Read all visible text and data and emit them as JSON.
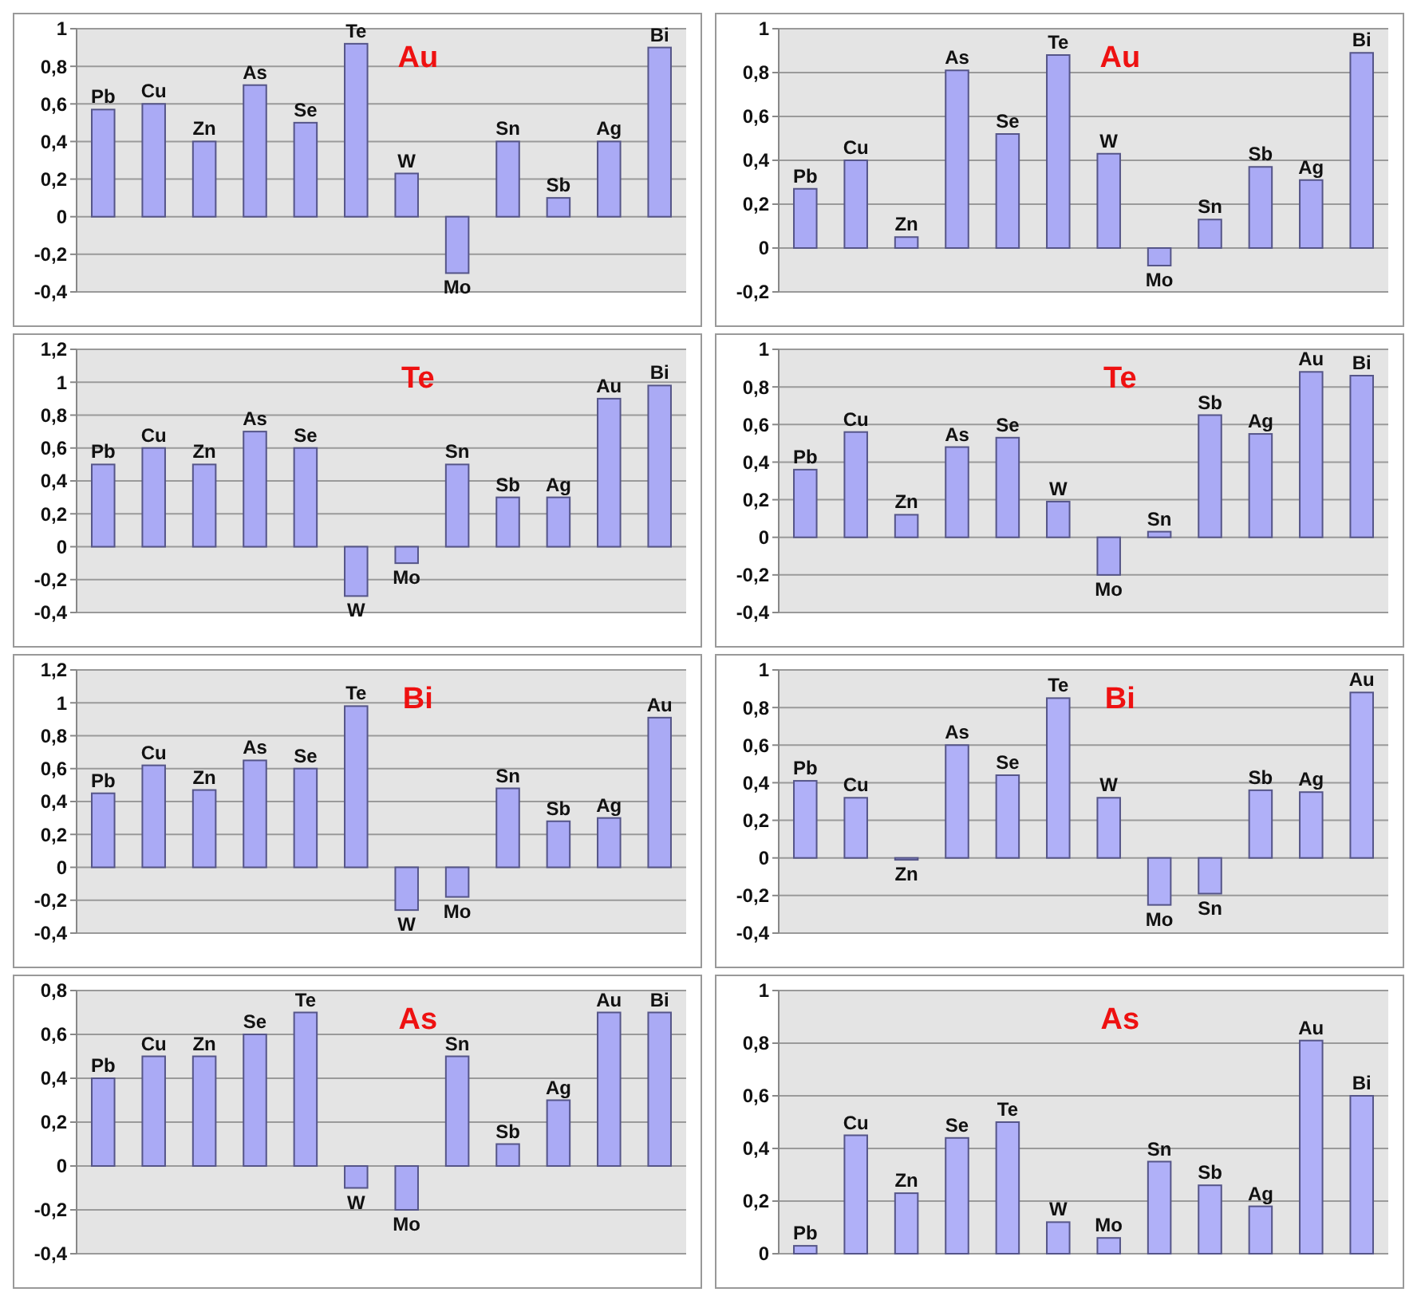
{
  "chart_data": [
    {
      "type": "bar",
      "title": "Au",
      "categories": [
        "Pb",
        "Cu",
        "Zn",
        "As",
        "Se",
        "Te",
        "W",
        "Mo",
        "Sn",
        "Sb",
        "Ag",
        "Bi"
      ],
      "values": [
        0.57,
        0.6,
        0.4,
        0.7,
        0.5,
        0.92,
        0.23,
        -0.3,
        0.4,
        0.1,
        0.4,
        0.9
      ],
      "color": "#aaaaf5",
      "ylim": [
        -0.4,
        1
      ],
      "yticks": [
        {
          "value": -0.4,
          "label": "-0,4"
        },
        {
          "value": -0.2,
          "label": "-0,2"
        },
        {
          "value": 0,
          "label": "0"
        },
        {
          "value": 0.2,
          "label": "0,2"
        },
        {
          "value": 0.4,
          "label": "0,4"
        },
        {
          "value": 0.6,
          "label": "0,6"
        },
        {
          "value": 0.8,
          "label": "0,8"
        },
        {
          "value": 1,
          "label": "1"
        }
      ],
      "grid": "y"
    },
    {
      "type": "bar",
      "title": "Au",
      "categories": [
        "Pb",
        "Cu",
        "Zn",
        "As",
        "Se",
        "Te",
        "W",
        "Mo",
        "Sn",
        "Sb",
        "Ag",
        "Bi"
      ],
      "values": [
        0.27,
        0.4,
        0.05,
        0.81,
        0.52,
        0.88,
        0.43,
        -0.08,
        0.13,
        0.37,
        0.31,
        0.89
      ],
      "color": "#aaaaf5",
      "ylim": [
        -0.2,
        1
      ],
      "yticks": [
        {
          "value": -0.2,
          "label": "-0,2"
        },
        {
          "value": 0,
          "label": "0"
        },
        {
          "value": 0.2,
          "label": "0,2"
        },
        {
          "value": 0.4,
          "label": "0,4"
        },
        {
          "value": 0.6,
          "label": "0,6"
        },
        {
          "value": 0.8,
          "label": "0,8"
        },
        {
          "value": 1,
          "label": "1"
        }
      ],
      "grid": "y"
    },
    {
      "type": "bar",
      "title": "Te",
      "categories": [
        "Pb",
        "Cu",
        "Zn",
        "As",
        "Se",
        "W",
        "Mo",
        "Sn",
        "Sb",
        "Ag",
        "Au",
        "Bi"
      ],
      "values": [
        0.5,
        0.6,
        0.5,
        0.7,
        0.6,
        -0.3,
        -0.1,
        0.5,
        0.3,
        0.3,
        0.9,
        0.98
      ],
      "color": "#aaaaf5",
      "ylim": [
        -0.4,
        1.2
      ],
      "yticks": [
        {
          "value": -0.4,
          "label": "-0,4"
        },
        {
          "value": -0.2,
          "label": "-0,2"
        },
        {
          "value": 0,
          "label": "0"
        },
        {
          "value": 0.2,
          "label": "0,2"
        },
        {
          "value": 0.4,
          "label": "0,4"
        },
        {
          "value": 0.6,
          "label": "0,6"
        },
        {
          "value": 0.8,
          "label": "0,8"
        },
        {
          "value": 1,
          "label": "1"
        },
        {
          "value": 1.2,
          "label": "1,2"
        }
      ],
      "grid": "y"
    },
    {
      "type": "bar",
      "title": "Te",
      "categories": [
        "Pb",
        "Cu",
        "Zn",
        "As",
        "Se",
        "W",
        "Mo",
        "Sn",
        "Sb",
        "Ag",
        "Au",
        "Bi"
      ],
      "values": [
        0.36,
        0.56,
        0.12,
        0.48,
        0.53,
        0.19,
        -0.2,
        0.03,
        0.65,
        0.55,
        0.88,
        0.86
      ],
      "color": "#aaaaf5",
      "ylim": [
        -0.4,
        1
      ],
      "yticks": [
        {
          "value": -0.4,
          "label": "-0,4"
        },
        {
          "value": -0.2,
          "label": "-0,2"
        },
        {
          "value": 0,
          "label": "0"
        },
        {
          "value": 0.2,
          "label": "0,2"
        },
        {
          "value": 0.4,
          "label": "0,4"
        },
        {
          "value": 0.6,
          "label": "0,6"
        },
        {
          "value": 0.8,
          "label": "0,8"
        },
        {
          "value": 1,
          "label": "1"
        }
      ],
      "grid": "y"
    },
    {
      "type": "bar",
      "title": "Bi",
      "categories": [
        "Pb",
        "Cu",
        "Zn",
        "As",
        "Se",
        "Te",
        "W",
        "Mo",
        "Sn",
        "Sb",
        "Ag",
        "Au"
      ],
      "values": [
        0.45,
        0.62,
        0.47,
        0.65,
        0.6,
        0.98,
        -0.26,
        -0.18,
        0.48,
        0.28,
        0.3,
        0.91
      ],
      "color": "#aaaaf5",
      "ylim": [
        -0.4,
        1.2
      ],
      "yticks": [
        {
          "value": -0.4,
          "label": "-0,4"
        },
        {
          "value": -0.2,
          "label": "-0,2"
        },
        {
          "value": 0,
          "label": "0"
        },
        {
          "value": 0.2,
          "label": "0,2"
        },
        {
          "value": 0.4,
          "label": "0,4"
        },
        {
          "value": 0.6,
          "label": "0,6"
        },
        {
          "value": 0.8,
          "label": "0,8"
        },
        {
          "value": 1,
          "label": "1"
        },
        {
          "value": 1.2,
          "label": "1,2"
        }
      ],
      "grid": "y"
    },
    {
      "type": "bar",
      "title": "Bi",
      "categories": [
        "Pb",
        "Cu",
        "Zn",
        "As",
        "Se",
        "Te",
        "W",
        "Mo",
        "Sn",
        "Sb",
        "Ag",
        "Au"
      ],
      "values": [
        0.41,
        0.32,
        -0.01,
        0.6,
        0.44,
        0.85,
        0.32,
        -0.25,
        -0.19,
        0.36,
        0.35,
        0.88
      ],
      "color": "#b0b0f8",
      "ylim": [
        -0.4,
        1
      ],
      "yticks": [
        {
          "value": -0.4,
          "label": "-0,4"
        },
        {
          "value": -0.2,
          "label": "-0,2"
        },
        {
          "value": 0,
          "label": "0"
        },
        {
          "value": 0.2,
          "label": "0,2"
        },
        {
          "value": 0.4,
          "label": "0,4"
        },
        {
          "value": 0.6,
          "label": "0,6"
        },
        {
          "value": 0.8,
          "label": "0,8"
        },
        {
          "value": 1,
          "label": "1"
        }
      ],
      "grid": "y"
    },
    {
      "type": "bar",
      "title": "As",
      "categories": [
        "Pb",
        "Cu",
        "Zn",
        "Se",
        "Te",
        "W",
        "Mo",
        "Sn",
        "Sb",
        "Ag",
        "Au",
        "Bi"
      ],
      "values": [
        0.4,
        0.5,
        0.5,
        0.6,
        0.7,
        -0.1,
        -0.2,
        0.5,
        0.1,
        0.3,
        0.7,
        0.7
      ],
      "color": "#aaaaf5",
      "ylim": [
        -0.4,
        0.8
      ],
      "yticks": [
        {
          "value": -0.4,
          "label": "-0,4"
        },
        {
          "value": -0.2,
          "label": "-0,2"
        },
        {
          "value": 0,
          "label": "0"
        },
        {
          "value": 0.2,
          "label": "0,2"
        },
        {
          "value": 0.4,
          "label": "0,4"
        },
        {
          "value": 0.6,
          "label": "0,6"
        },
        {
          "value": 0.8,
          "label": "0,8"
        }
      ],
      "grid": "y"
    },
    {
      "type": "bar",
      "title": "As",
      "categories": [
        "Pb",
        "Cu",
        "Zn",
        "Se",
        "Te",
        "W",
        "Mo",
        "Sn",
        "Sb",
        "Ag",
        "Au",
        "Bi"
      ],
      "values": [
        0.03,
        0.45,
        0.23,
        0.44,
        0.5,
        0.12,
        0.06,
        0.35,
        0.26,
        0.18,
        0.81,
        0.6
      ],
      "color": "#b0b0f8",
      "ylim": [
        0,
        1
      ],
      "yticks": [
        {
          "value": 0,
          "label": "0"
        },
        {
          "value": 0.2,
          "label": "0,2"
        },
        {
          "value": 0.4,
          "label": "0,4"
        },
        {
          "value": 0.6,
          "label": "0,6"
        },
        {
          "value": 0.8,
          "label": "0,8"
        },
        {
          "value": 1,
          "label": "1"
        }
      ],
      "grid": "y"
    }
  ]
}
